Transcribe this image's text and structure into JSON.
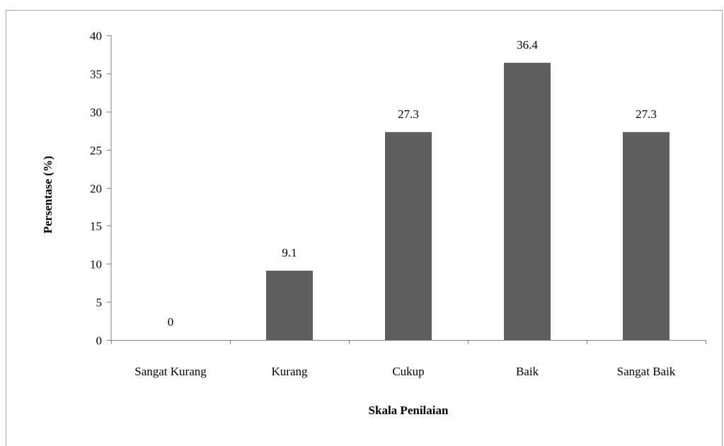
{
  "chart_data": {
    "type": "bar",
    "title": "",
    "xlabel": "Skala Penilaian",
    "ylabel": "Persentase (%)",
    "categories": [
      "Sangat Kurang",
      "Kurang",
      "Cukup",
      "Baik",
      "Sangat Baik"
    ],
    "values": [
      0,
      9.1,
      27.3,
      36.4,
      27.3
    ],
    "data_labels": [
      "0",
      "9.1",
      "27.3",
      "36.4",
      "27.3"
    ],
    "ylim": [
      0,
      40
    ],
    "yticks": [
      0,
      5,
      10,
      15,
      20,
      25,
      30,
      35,
      40
    ],
    "grid": false,
    "legend": "none",
    "bar_color": "#5f5f5f",
    "axis_color": "#808080"
  }
}
